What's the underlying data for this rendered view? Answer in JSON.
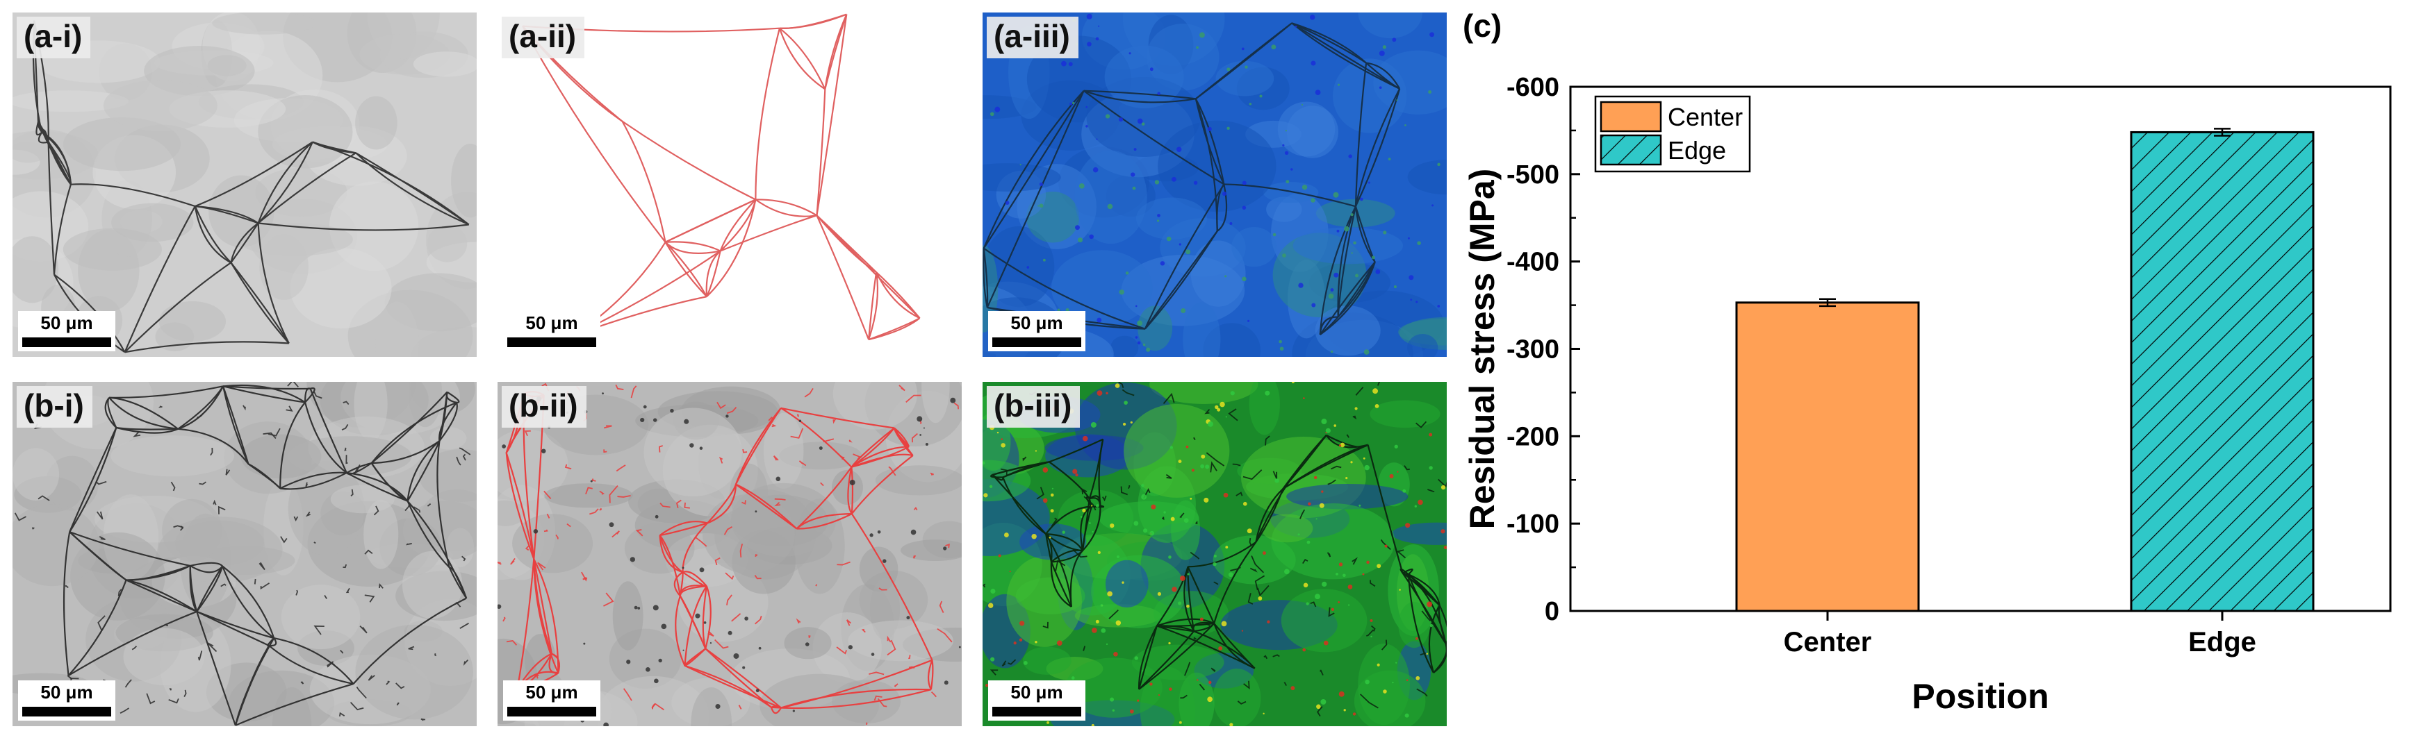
{
  "panels": [
    {
      "id": "a-i",
      "label": "(a-i)",
      "scale": "50 μm",
      "style": "gray"
    },
    {
      "id": "a-ii",
      "label": "(a-ii)",
      "scale": "50 μm",
      "style": "red"
    },
    {
      "id": "a-iii",
      "label": "(a-iii)",
      "scale": "50 μm",
      "style": "blue"
    },
    {
      "id": "b-i",
      "label": "(b-i)",
      "scale": "50 μm",
      "style": "gray-dense"
    },
    {
      "id": "b-ii",
      "label": "(b-ii)",
      "scale": "50 μm",
      "style": "red-dense"
    },
    {
      "id": "b-iii",
      "label": "(b-iii)",
      "scale": "50 μm",
      "style": "green"
    }
  ],
  "chart_label": "(c)",
  "chart_data": {
    "type": "bar",
    "categories": [
      "Center",
      "Edge"
    ],
    "values": [
      -353,
      -548
    ],
    "errors": [
      4,
      4
    ],
    "colors": [
      "#FFA055",
      "#2FC8C8"
    ],
    "hatch": [
      false,
      true
    ],
    "xlabel": "Position",
    "ylabel": "Residual stress (MPa)",
    "ylim": [
      0,
      -600
    ],
    "yticks": [
      "0",
      "-100",
      "-200",
      "-300",
      "-400",
      "-500",
      "-600"
    ],
    "legend": [
      {
        "name": "Center",
        "color": "#FFA055"
      },
      {
        "name": "Edge",
        "color": "#2FC8C8"
      }
    ],
    "legend_position": "top-left"
  }
}
